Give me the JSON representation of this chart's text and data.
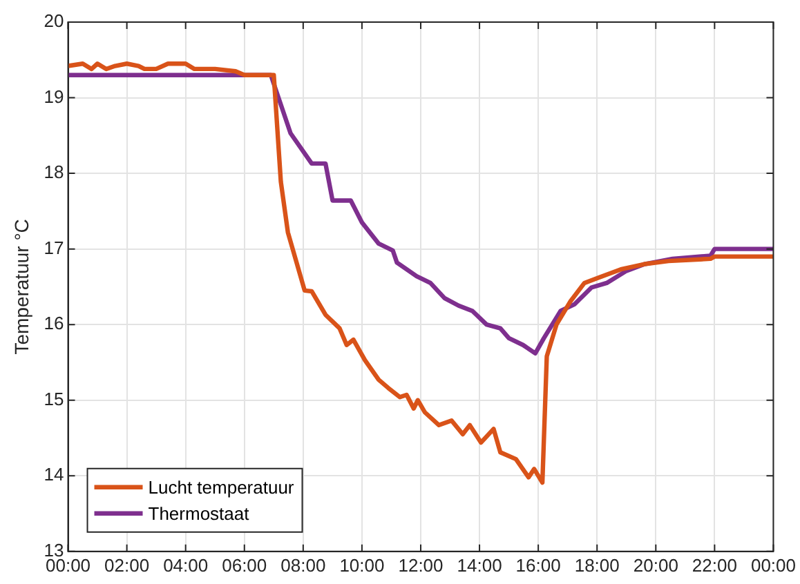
{
  "chart_data": {
    "type": "line",
    "ylabel": "Temperatuur °C",
    "xlim": [
      0,
      24
    ],
    "xticks": [
      {
        "value": 0,
        "label": "00:00"
      },
      {
        "value": 2,
        "label": "02:00"
      },
      {
        "value": 4,
        "label": "04:00"
      },
      {
        "value": 6,
        "label": "06:00"
      },
      {
        "value": 8,
        "label": "08:00"
      },
      {
        "value": 10,
        "label": "10:00"
      },
      {
        "value": 12,
        "label": "12:00"
      },
      {
        "value": 14,
        "label": "14:00"
      },
      {
        "value": 16,
        "label": "16:00"
      },
      {
        "value": 18,
        "label": "18:00"
      },
      {
        "value": 20,
        "label": "20:00"
      },
      {
        "value": 22,
        "label": "22:00"
      },
      {
        "value": 24,
        "label": "00:00"
      }
    ],
    "ylim": [
      13,
      20
    ],
    "yticks": [
      13,
      14,
      15,
      16,
      17,
      18,
      19,
      20
    ],
    "grid": true,
    "legend": "bottom left",
    "marker": "none",
    "line_style": "solid",
    "series": [
      {
        "name": "Lucht temperatuur",
        "color": "#d95319",
        "x": [
          0,
          0.5,
          0.8,
          1,
          1.3,
          1.6,
          2,
          2.4,
          2.6,
          3,
          3.4,
          4,
          4.3,
          5,
          5.7,
          6,
          7,
          7.24,
          7.48,
          8.05,
          8.29,
          8.76,
          9.24,
          9.48,
          9.71,
          10.1,
          10.57,
          10.9,
          11.29,
          11.52,
          11.76,
          11.9,
          12.14,
          12.62,
          13.05,
          13.43,
          13.67,
          14.05,
          14.48,
          14.71,
          15.24,
          15.67,
          15.86,
          16.14,
          16.29,
          16.62,
          17.1,
          17.57,
          18.05,
          18.81,
          19.62,
          20.43,
          21.86,
          22,
          24
        ],
        "values": [
          19.42,
          19.45,
          19.38,
          19.45,
          19.38,
          19.42,
          19.45,
          19.42,
          19.38,
          19.38,
          19.45,
          19.45,
          19.38,
          19.38,
          19.35,
          19.3,
          19.3,
          17.89,
          17.22,
          16.45,
          16.44,
          16.13,
          15.95,
          15.73,
          15.8,
          15.53,
          15.27,
          15.16,
          15.04,
          15.07,
          14.89,
          15.0,
          14.84,
          14.67,
          14.73,
          14.55,
          14.67,
          14.44,
          14.62,
          14.31,
          14.22,
          13.98,
          14.09,
          13.91,
          15.58,
          16.0,
          16.31,
          16.55,
          16.62,
          16.73,
          16.8,
          16.84,
          16.87,
          16.9,
          16.9
        ]
      },
      {
        "name": "Thermostaat",
        "color": "#7e2f8e",
        "x": [
          0,
          6.9,
          7.57,
          8.29,
          8.76,
          9.0,
          9.62,
          10.0,
          10.57,
          11.05,
          11.19,
          11.86,
          12.33,
          12.81,
          13.29,
          13.76,
          14.24,
          14.71,
          15.0,
          15.48,
          15.9,
          16.19,
          16.76,
          17.24,
          17.81,
          18.33,
          19.0,
          19.62,
          20.57,
          21.86,
          22,
          24
        ],
        "values": [
          19.3,
          19.3,
          18.53,
          18.13,
          18.13,
          17.64,
          17.64,
          17.35,
          17.07,
          16.98,
          16.82,
          16.64,
          16.55,
          16.35,
          16.25,
          16.18,
          16.0,
          15.95,
          15.82,
          15.73,
          15.62,
          15.82,
          16.18,
          16.27,
          16.49,
          16.55,
          16.71,
          16.8,
          16.87,
          16.91,
          17.0,
          17.0
        ]
      }
    ]
  }
}
